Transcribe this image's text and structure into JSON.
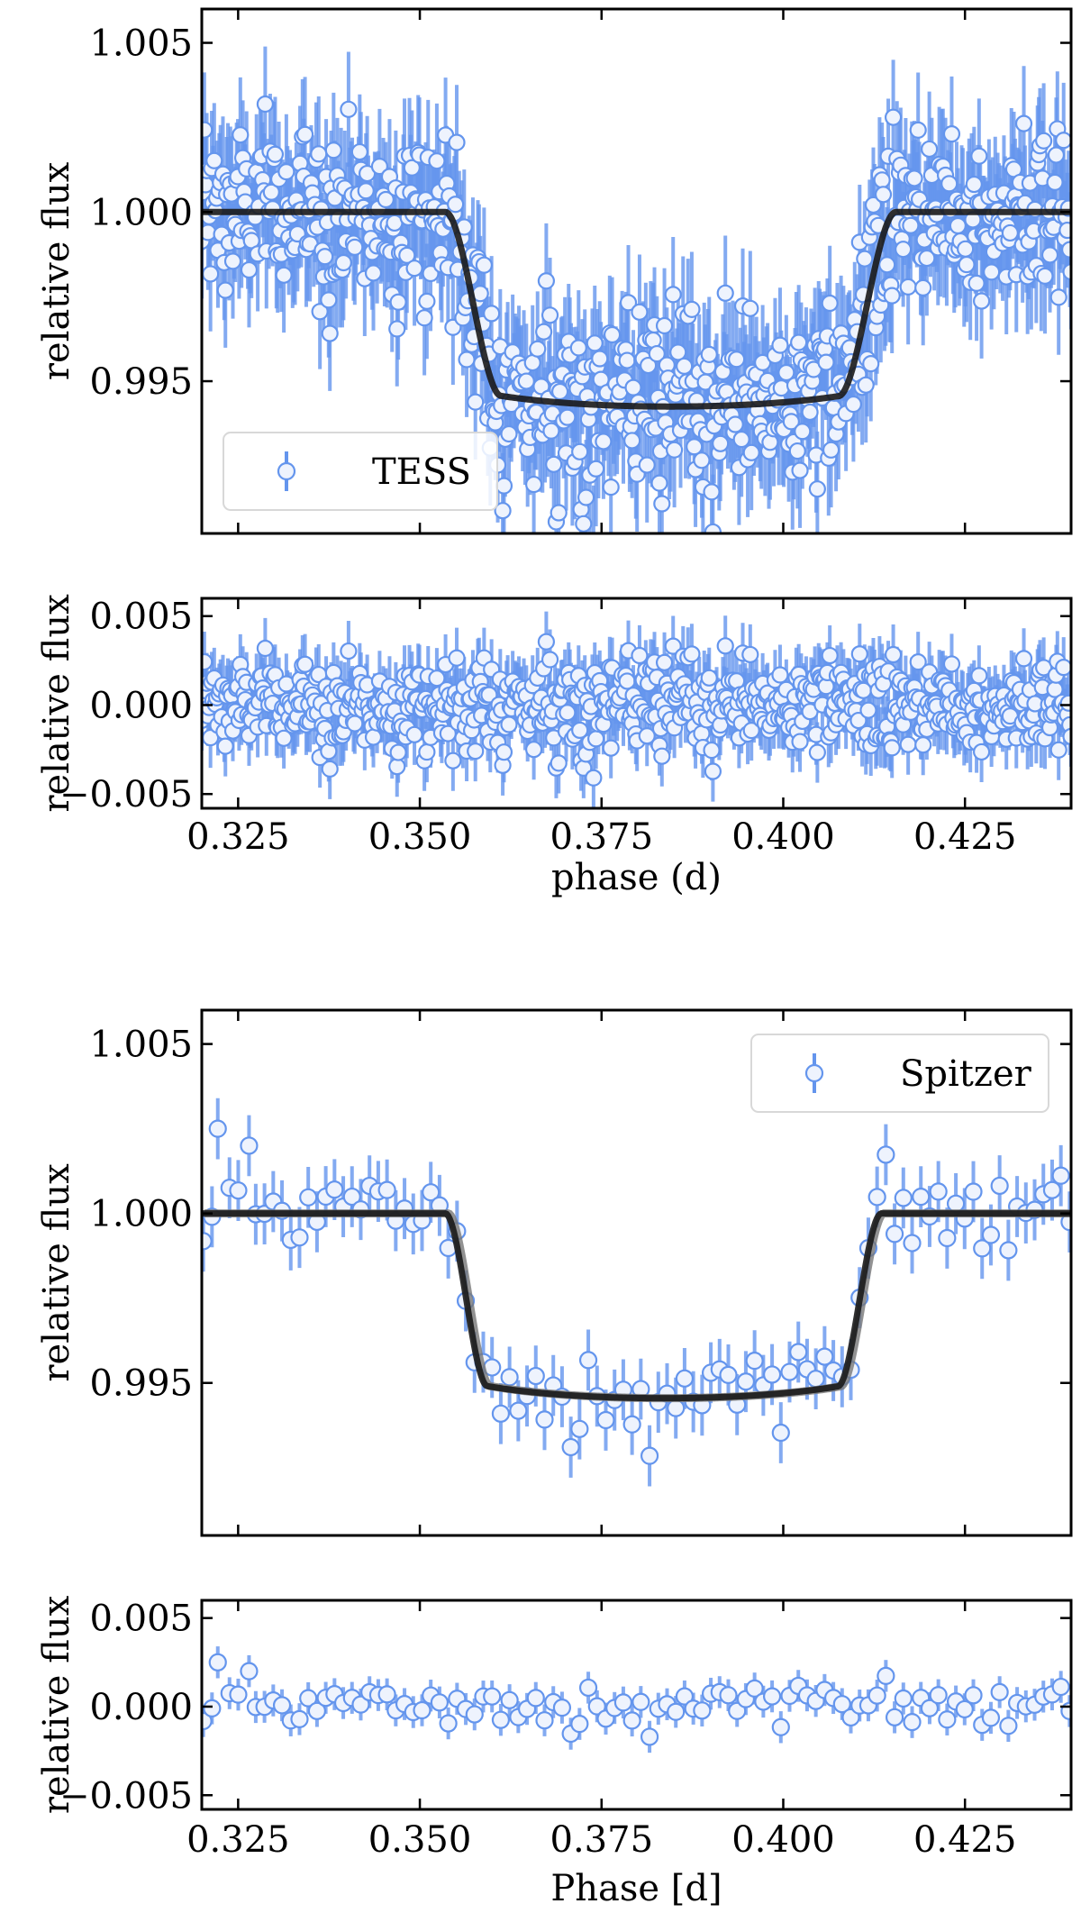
{
  "chart_data": [
    {
      "type": "scatter",
      "panel": "TESS light curve",
      "xlim": [
        0.32,
        0.4396
      ],
      "ylim": [
        0.9905,
        1.006
      ],
      "yticks": [
        0.995,
        1.0,
        1.005
      ],
      "ytick_labels": [
        "0.995",
        "1.000",
        "1.005"
      ],
      "xticks": [
        0.325,
        0.35,
        0.375,
        0.4,
        0.425
      ],
      "xlabel": "",
      "ylabel": "relative flux",
      "legend": "TESS",
      "legend_position": "lower-left",
      "grid": false,
      "point_color": "#6495ed",
      "model_color": "#1a1a1a",
      "points": {
        "n": 700,
        "x_range": [
          0.32,
          0.4396
        ],
        "scatter": 0.0013,
        "error": 0.0017
      },
      "model": {
        "name": "",
        "baseline": 1.0,
        "depth_center": 0.99425,
        "t1": 0.3535,
        "t2": 0.3612,
        "t3": 0.4076,
        "t4": 0.4155,
        "center": 0.3845
      }
    },
    {
      "type": "scatter",
      "panel": "TESS residuals",
      "xlim": [
        0.32,
        0.4396
      ],
      "ylim": [
        -0.0058,
        0.006
      ],
      "yticks": [
        -0.005,
        0.0,
        0.005
      ],
      "ytick_labels": [
        "−0.005",
        "0.000",
        "0.005"
      ],
      "xticks": [
        0.325,
        0.35,
        0.375,
        0.4,
        0.425
      ],
      "xtick_labels": [
        "0.325",
        "0.350",
        "0.375",
        "0.400",
        "0.425"
      ],
      "xlabel": "phase (d)",
      "ylabel": "relative flux",
      "grid": false,
      "point_color": "#6495ed",
      "points": {
        "n": 700,
        "x_range": [
          0.32,
          0.4396
        ],
        "scatter": 0.0013,
        "error": 0.0017
      }
    },
    {
      "type": "scatter",
      "panel": "Spitzer light curve",
      "xlim": [
        0.32,
        0.4396
      ],
      "ylim": [
        0.9905,
        1.006
      ],
      "yticks": [
        0.995,
        1.0,
        1.005
      ],
      "ytick_labels": [
        "0.995",
        "1.000",
        "1.005"
      ],
      "xticks": [
        0.325,
        0.35,
        0.375,
        0.4,
        0.425
      ],
      "xlabel": "",
      "ylabel": "relative flux",
      "legend": "Spitzer",
      "legend_position": "top-right",
      "grid": false,
      "point_color": "#6495ed",
      "model_color": "#1a1a1a",
      "points": {
        "n": 100,
        "x_range": [
          0.3202,
          0.4394
        ],
        "scatter": 0.0006,
        "error": 0.0009
      },
      "outliers": [
        {
          "x": 0.3222,
          "y": 1.0025
        },
        {
          "x": 0.3265,
          "y": 1.002
        }
      ],
      "model": {
        "name": "",
        "baseline": 1.0,
        "depth_center": 0.99455,
        "t1": 0.3535,
        "t2": 0.3593,
        "t3": 0.4075,
        "t4": 0.4135,
        "center": 0.3835
      }
    },
    {
      "type": "scatter",
      "panel": "Spitzer residuals",
      "xlim": [
        0.32,
        0.4396
      ],
      "ylim": [
        -0.0058,
        0.006
      ],
      "yticks": [
        -0.005,
        0.0,
        0.005
      ],
      "ytick_labels": [
        "−0.005",
        "0.000",
        "0.005"
      ],
      "xticks": [
        0.325,
        0.35,
        0.375,
        0.4,
        0.425
      ],
      "xtick_labels": [
        "0.325",
        "0.350",
        "0.375",
        "0.400",
        "0.425"
      ],
      "xlabel": "Phase [d]",
      "ylabel": "relative flux",
      "grid": false,
      "point_color": "#6495ed",
      "points": {
        "n": 100,
        "x_range": [
          0.3202,
          0.4394
        ],
        "scatter": 0.0006,
        "error": 0.0009
      },
      "outliers": [
        {
          "x": 0.3222,
          "y": 0.0025
        },
        {
          "x": 0.3265,
          "y": 0.002
        }
      ]
    }
  ]
}
